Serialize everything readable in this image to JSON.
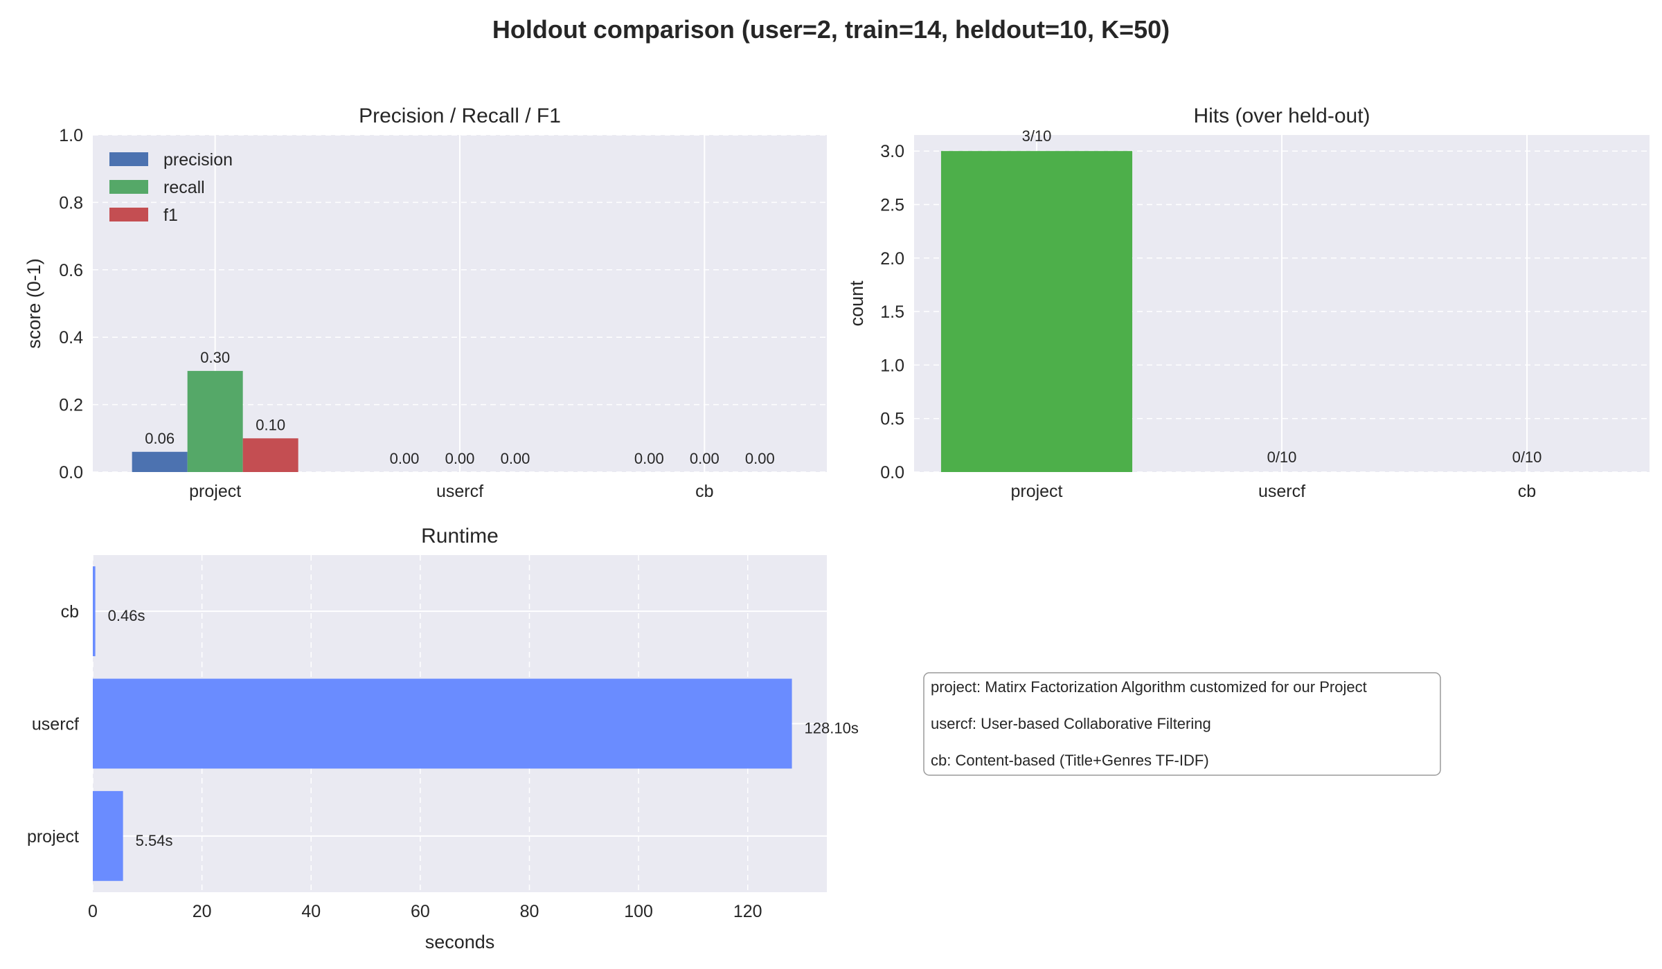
{
  "figure": {
    "title": "Holdout comparison (user=2, train=14, heldout=10, K=50)",
    "background": "#ffffff",
    "axes_bg": "#eaeaf2"
  },
  "chart_data": [
    {
      "id": "prf",
      "type": "bar",
      "title": "Precision / Recall / F1",
      "xlabel": "",
      "ylabel": "score (0-1)",
      "categories": [
        "project",
        "usercf",
        "cb"
      ],
      "series": [
        {
          "name": "precision",
          "color": "#4c72b0",
          "values": [
            0.06,
            0.0,
            0.0
          ],
          "labels": [
            "0.06",
            "0.00",
            "0.00"
          ]
        },
        {
          "name": "recall",
          "color": "#55a868",
          "values": [
            0.3,
            0.0,
            0.0
          ],
          "labels": [
            "0.30",
            "0.00",
            "0.00"
          ]
        },
        {
          "name": "f1",
          "color": "#c44e52",
          "values": [
            0.1,
            0.0,
            0.0
          ],
          "labels": [
            "0.10",
            "0.00",
            "0.00"
          ]
        }
      ],
      "ylim": [
        0,
        1.0
      ],
      "yticks": [
        0.0,
        0.2,
        0.4,
        0.6,
        0.8,
        1.0
      ],
      "ytick_labels": [
        "0.0",
        "0.2",
        "0.4",
        "0.6",
        "0.8",
        "1.0"
      ],
      "legend": "top-left",
      "grid": true
    },
    {
      "id": "hits",
      "type": "bar",
      "title": "Hits (over held-out)",
      "xlabel": "",
      "ylabel": "count",
      "categories": [
        "project",
        "usercf",
        "cb"
      ],
      "values": [
        3,
        0,
        0
      ],
      "labels": [
        "3/10",
        "0/10",
        "0/10"
      ],
      "color": "#4daf4a",
      "ylim": [
        0,
        3.15
      ],
      "yticks": [
        0.0,
        0.5,
        1.0,
        1.5,
        2.0,
        2.5,
        3.0
      ],
      "ytick_labels": [
        "0.0",
        "0.5",
        "1.0",
        "1.5",
        "2.0",
        "2.5",
        "3.0"
      ],
      "grid": true
    },
    {
      "id": "runtime",
      "type": "bar",
      "orientation": "horizontal",
      "title": "Runtime",
      "xlabel": "seconds",
      "ylabel": "",
      "categories": [
        "project",
        "usercf",
        "cb"
      ],
      "values": [
        5.54,
        128.1,
        0.46
      ],
      "labels": [
        "5.54s",
        "128.10s",
        "0.46s"
      ],
      "color": "#6a8cff",
      "xlim": [
        0,
        134.5
      ],
      "xticks": [
        0,
        20,
        40,
        60,
        80,
        100,
        120
      ],
      "xtick_labels": [
        "0",
        "20",
        "40",
        "60",
        "80",
        "100",
        "120"
      ],
      "grid": true
    }
  ],
  "notes": [
    "project: Matirx Factorization Algorithm customized  for our Project",
    "usercf: User-based Collaborative Filtering",
    "cb: Content-based (Title+Genres TF-IDF)"
  ]
}
